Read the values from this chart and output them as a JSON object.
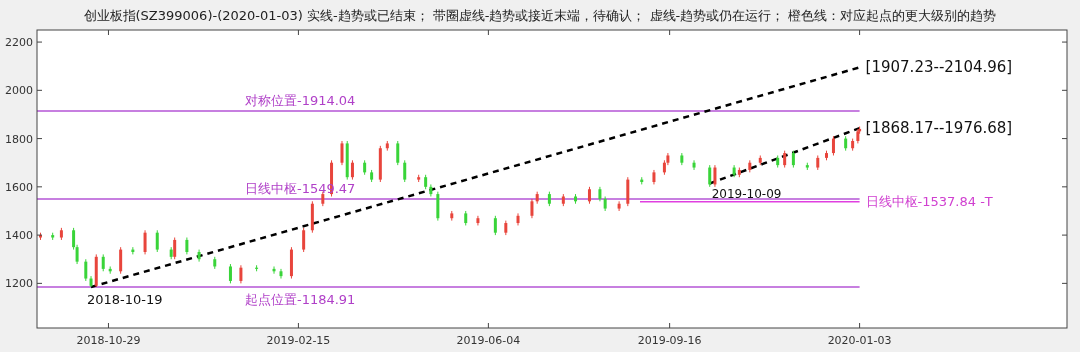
{
  "chart_data": {
    "type": "candlestick",
    "title": "创业板指(SZ399006)-(2020-01-03)  实线-趋势或已结束；  带圈虚线-趋势或接近末端，待确认；  虚线-趋势或仍在运行；  橙色线：对应起点的更大级别的趋势",
    "xlim": [
      "2018-09-18",
      "2020-05-01"
    ],
    "xticks": [
      "2018-10-29",
      "2019-02-15",
      "2019-06-04",
      "2019-09-16",
      "2020-01-03"
    ],
    "ylim": [
      1015,
      2250
    ],
    "yticks": [
      1200,
      1400,
      1600,
      1800,
      2000,
      2200
    ],
    "x": [
      "2018-09-20",
      "2018-09-27",
      "2018-10-02",
      "2018-10-09",
      "2018-10-11",
      "2018-10-16",
      "2018-10-19",
      "2018-10-22",
      "2018-10-26",
      "2018-10-30",
      "2018-11-05",
      "2018-11-12",
      "2018-11-19",
      "2018-11-26",
      "2018-12-04",
      "2018-12-06",
      "2018-12-13",
      "2018-12-20",
      "2018-12-29",
      "2019-01-07",
      "2019-01-13",
      "2019-01-22",
      "2019-02-01",
      "2019-02-05",
      "2019-02-11",
      "2019-02-18",
      "2019-02-23",
      "2019-03-01",
      "2019-03-06",
      "2019-03-12",
      "2019-03-15",
      "2019-03-18",
      "2019-03-25",
      "2019-03-29",
      "2019-04-03",
      "2019-04-07",
      "2019-04-13",
      "2019-04-17",
      "2019-04-25",
      "2019-04-29",
      "2019-05-02",
      "2019-05-06",
      "2019-05-14",
      "2019-05-22",
      "2019-05-29",
      "2019-06-08",
      "2019-06-14",
      "2019-06-21",
      "2019-06-29",
      "2019-07-02",
      "2019-07-09",
      "2019-07-17",
      "2019-07-24",
      "2019-08-01",
      "2019-08-07",
      "2019-08-10",
      "2019-08-18",
      "2019-08-23",
      "2019-08-31",
      "2019-09-07",
      "2019-09-13",
      "2019-09-15",
      "2019-09-23",
      "2019-09-30",
      "2019-10-09",
      "2019-10-12",
      "2019-10-23",
      "2019-10-26",
      "2019-11-01",
      "2019-11-07",
      "2019-11-17",
      "2019-11-21",
      "2019-11-26",
      "2019-12-04",
      "2019-12-10",
      "2019-12-15",
      "2019-12-19",
      "2019-12-26",
      "2019-12-30",
      "2020-01-02",
      "2020-01-03"
    ],
    "ohlc": [
      [
        1390,
        1410,
        1380,
        1400
      ],
      [
        1400,
        1410,
        1380,
        1390
      ],
      [
        1390,
        1430,
        1380,
        1420
      ],
      [
        1420,
        1430,
        1340,
        1350
      ],
      [
        1350,
        1360,
        1280,
        1290
      ],
      [
        1290,
        1300,
        1210,
        1220
      ],
      [
        1220,
        1230,
        1185,
        1190
      ],
      [
        1190,
        1320,
        1185,
        1310
      ],
      [
        1310,
        1320,
        1250,
        1260
      ],
      [
        1260,
        1270,
        1240,
        1250
      ],
      [
        1250,
        1350,
        1240,
        1340
      ],
      [
        1340,
        1350,
        1320,
        1330
      ],
      [
        1330,
        1420,
        1320,
        1410
      ],
      [
        1410,
        1420,
        1330,
        1340
      ],
      [
        1340,
        1350,
        1300,
        1310
      ],
      [
        1310,
        1390,
        1300,
        1380
      ],
      [
        1380,
        1390,
        1320,
        1330
      ],
      [
        1330,
        1340,
        1290,
        1300
      ],
      [
        1300,
        1310,
        1260,
        1270
      ],
      [
        1270,
        1280,
        1200,
        1210
      ],
      [
        1210,
        1275,
        1200,
        1265
      ],
      [
        1265,
        1275,
        1250,
        1260
      ],
      [
        1260,
        1270,
        1240,
        1250
      ],
      [
        1250,
        1260,
        1220,
        1230
      ],
      [
        1230,
        1350,
        1220,
        1340
      ],
      [
        1340,
        1430,
        1330,
        1420
      ],
      [
        1420,
        1540,
        1410,
        1530
      ],
      [
        1530,
        1580,
        1520,
        1570
      ],
      [
        1570,
        1710,
        1560,
        1700
      ],
      [
        1700,
        1790,
        1690,
        1780
      ],
      [
        1780,
        1790,
        1630,
        1640
      ],
      [
        1640,
        1710,
        1630,
        1700
      ],
      [
        1700,
        1710,
        1650,
        1660
      ],
      [
        1660,
        1670,
        1620,
        1630
      ],
      [
        1630,
        1770,
        1620,
        1760
      ],
      [
        1760,
        1790,
        1750,
        1780
      ],
      [
        1780,
        1790,
        1690,
        1700
      ],
      [
        1700,
        1710,
        1620,
        1630
      ],
      [
        1630,
        1650,
        1620,
        1640
      ],
      [
        1640,
        1650,
        1590,
        1600
      ],
      [
        1600,
        1610,
        1560,
        1570
      ],
      [
        1570,
        1580,
        1460,
        1470
      ],
      [
        1470,
        1500,
        1460,
        1490
      ],
      [
        1490,
        1500,
        1440,
        1450
      ],
      [
        1450,
        1480,
        1440,
        1470
      ],
      [
        1470,
        1480,
        1400,
        1410
      ],
      [
        1410,
        1460,
        1400,
        1450
      ],
      [
        1450,
        1490,
        1440,
        1480
      ],
      [
        1480,
        1550,
        1470,
        1540
      ],
      [
        1540,
        1580,
        1530,
        1570
      ],
      [
        1570,
        1580,
        1520,
        1530
      ],
      [
        1530,
        1570,
        1520,
        1560
      ],
      [
        1560,
        1570,
        1530,
        1540
      ],
      [
        1540,
        1600,
        1530,
        1590
      ],
      [
        1590,
        1600,
        1540,
        1550
      ],
      [
        1550,
        1560,
        1500,
        1510
      ],
      [
        1510,
        1540,
        1500,
        1530
      ],
      [
        1530,
        1640,
        1520,
        1630
      ],
      [
        1630,
        1640,
        1610,
        1620
      ],
      [
        1620,
        1670,
        1610,
        1660
      ],
      [
        1660,
        1710,
        1650,
        1700
      ],
      [
        1700,
        1740,
        1690,
        1730
      ],
      [
        1730,
        1740,
        1690,
        1700
      ],
      [
        1700,
        1710,
        1670,
        1680
      ],
      [
        1680,
        1690,
        1600,
        1610
      ],
      [
        1610,
        1690,
        1600,
        1680
      ],
      [
        1680,
        1690,
        1640,
        1650
      ],
      [
        1650,
        1680,
        1640,
        1670
      ],
      [
        1670,
        1710,
        1660,
        1700
      ],
      [
        1700,
        1730,
        1690,
        1720
      ],
      [
        1720,
        1730,
        1680,
        1690
      ],
      [
        1690,
        1750,
        1680,
        1740
      ],
      [
        1740,
        1750,
        1680,
        1690
      ],
      [
        1690,
        1700,
        1670,
        1680
      ],
      [
        1680,
        1730,
        1670,
        1720
      ],
      [
        1720,
        1750,
        1710,
        1740
      ],
      [
        1740,
        1810,
        1730,
        1800
      ],
      [
        1800,
        1810,
        1750,
        1760
      ],
      [
        1760,
        1800,
        1750,
        1790
      ],
      [
        1790,
        1840,
        1780,
        1830
      ],
      [
        1830,
        1850,
        1820,
        1840
      ]
    ],
    "colors": [
      "#e8453c",
      "#39d439",
      "#e8453c",
      "#39d439",
      "#39d439",
      "#39d439",
      "#39d439",
      "#e8453c",
      "#39d439",
      "#39d439",
      "#e8453c",
      "#39d439",
      "#e8453c",
      "#39d439",
      "#39d439",
      "#e8453c",
      "#39d439",
      "#39d439",
      "#39d439",
      "#39d439",
      "#e8453c",
      "#39d439",
      "#39d439",
      "#39d439",
      "#e8453c",
      "#e8453c",
      "#e8453c",
      "#e8453c",
      "#e8453c",
      "#e8453c",
      "#39d439",
      "#e8453c",
      "#39d439",
      "#39d439",
      "#e8453c",
      "#e8453c",
      "#39d439",
      "#39d439",
      "#e8453c",
      "#39d439",
      "#39d439",
      "#39d439",
      "#e8453c",
      "#39d439",
      "#e8453c",
      "#39d439",
      "#e8453c",
      "#e8453c",
      "#e8453c",
      "#e8453c",
      "#39d439",
      "#e8453c",
      "#39d439",
      "#e8453c",
      "#39d439",
      "#39d439",
      "#e8453c",
      "#e8453c",
      "#39d439",
      "#e8453c",
      "#e8453c",
      "#e8453c",
      "#39d439",
      "#39d439",
      "#39d439",
      "#e8453c",
      "#39d439",
      "#e8453c",
      "#e8453c",
      "#e8453c",
      "#39d439",
      "#e8453c",
      "#39d439",
      "#39d439",
      "#e8453c",
      "#e8453c",
      "#e8453c",
      "#39d439",
      "#e8453c",
      "#e8453c",
      "#e8453c"
    ],
    "series": [
      {
        "type": "line",
        "x": [
          "2018-09-18",
          "2020-01-03"
        ],
        "values": [
          1914.04,
          1914.04
        ],
        "color": "#b455d6",
        "line_style": "solid"
      },
      {
        "type": "line",
        "x": [
          "2018-09-18",
          "2020-01-03"
        ],
        "values": [
          1549.47,
          1549.47
        ],
        "color": "#b455d6",
        "line_style": "solid"
      },
      {
        "type": "line",
        "x": [
          "2018-09-18",
          "2020-01-03"
        ],
        "values": [
          1184.91,
          1184.91
        ],
        "color": "#b455d6",
        "line_style": "solid"
      },
      {
        "type": "line",
        "x": [
          "2019-08-30",
          "2020-01-03"
        ],
        "values": [
          1537.84,
          1537.84
        ],
        "color": "#e040e0",
        "line_style": "solid"
      },
      {
        "type": "line",
        "x": [
          "2018-10-19",
          "2020-01-03"
        ],
        "values": [
          1184.91,
          2095
        ],
        "color": "#000000",
        "line_style": "dashed"
      },
      {
        "type": "line",
        "x": [
          "2019-10-09",
          "2020-01-03"
        ],
        "values": [
          1614,
          1843
        ],
        "color": "#000000",
        "line_style": "dashed"
      }
    ],
    "annotations": [
      {
        "text": "对称位置-1914.04",
        "x": "2019-02-16",
        "y": 1914.04
      },
      {
        "text": "日线中枢-1549.47",
        "x": "2019-02-16",
        "y": 1549.47
      },
      {
        "text": "起点位置-1184.91",
        "x": "2019-02-16",
        "y": 1184.91
      },
      {
        "text": "2018-10-19",
        "x": "2018-10-19",
        "y": 1184.91
      },
      {
        "text": "2019-10-09",
        "x": "2019-10-09",
        "y": 1614
      },
      {
        "text": "日线中枢-1537.84 -T",
        "x": "2020-01-03",
        "y": 1537.84
      },
      {
        "text": "[1907.23--2104.96]",
        "x": "2020-01-03",
        "y": 2095
      },
      {
        "text": "[1868.17--1976.68]",
        "x": "2020-01-03",
        "y": 1843
      }
    ]
  }
}
